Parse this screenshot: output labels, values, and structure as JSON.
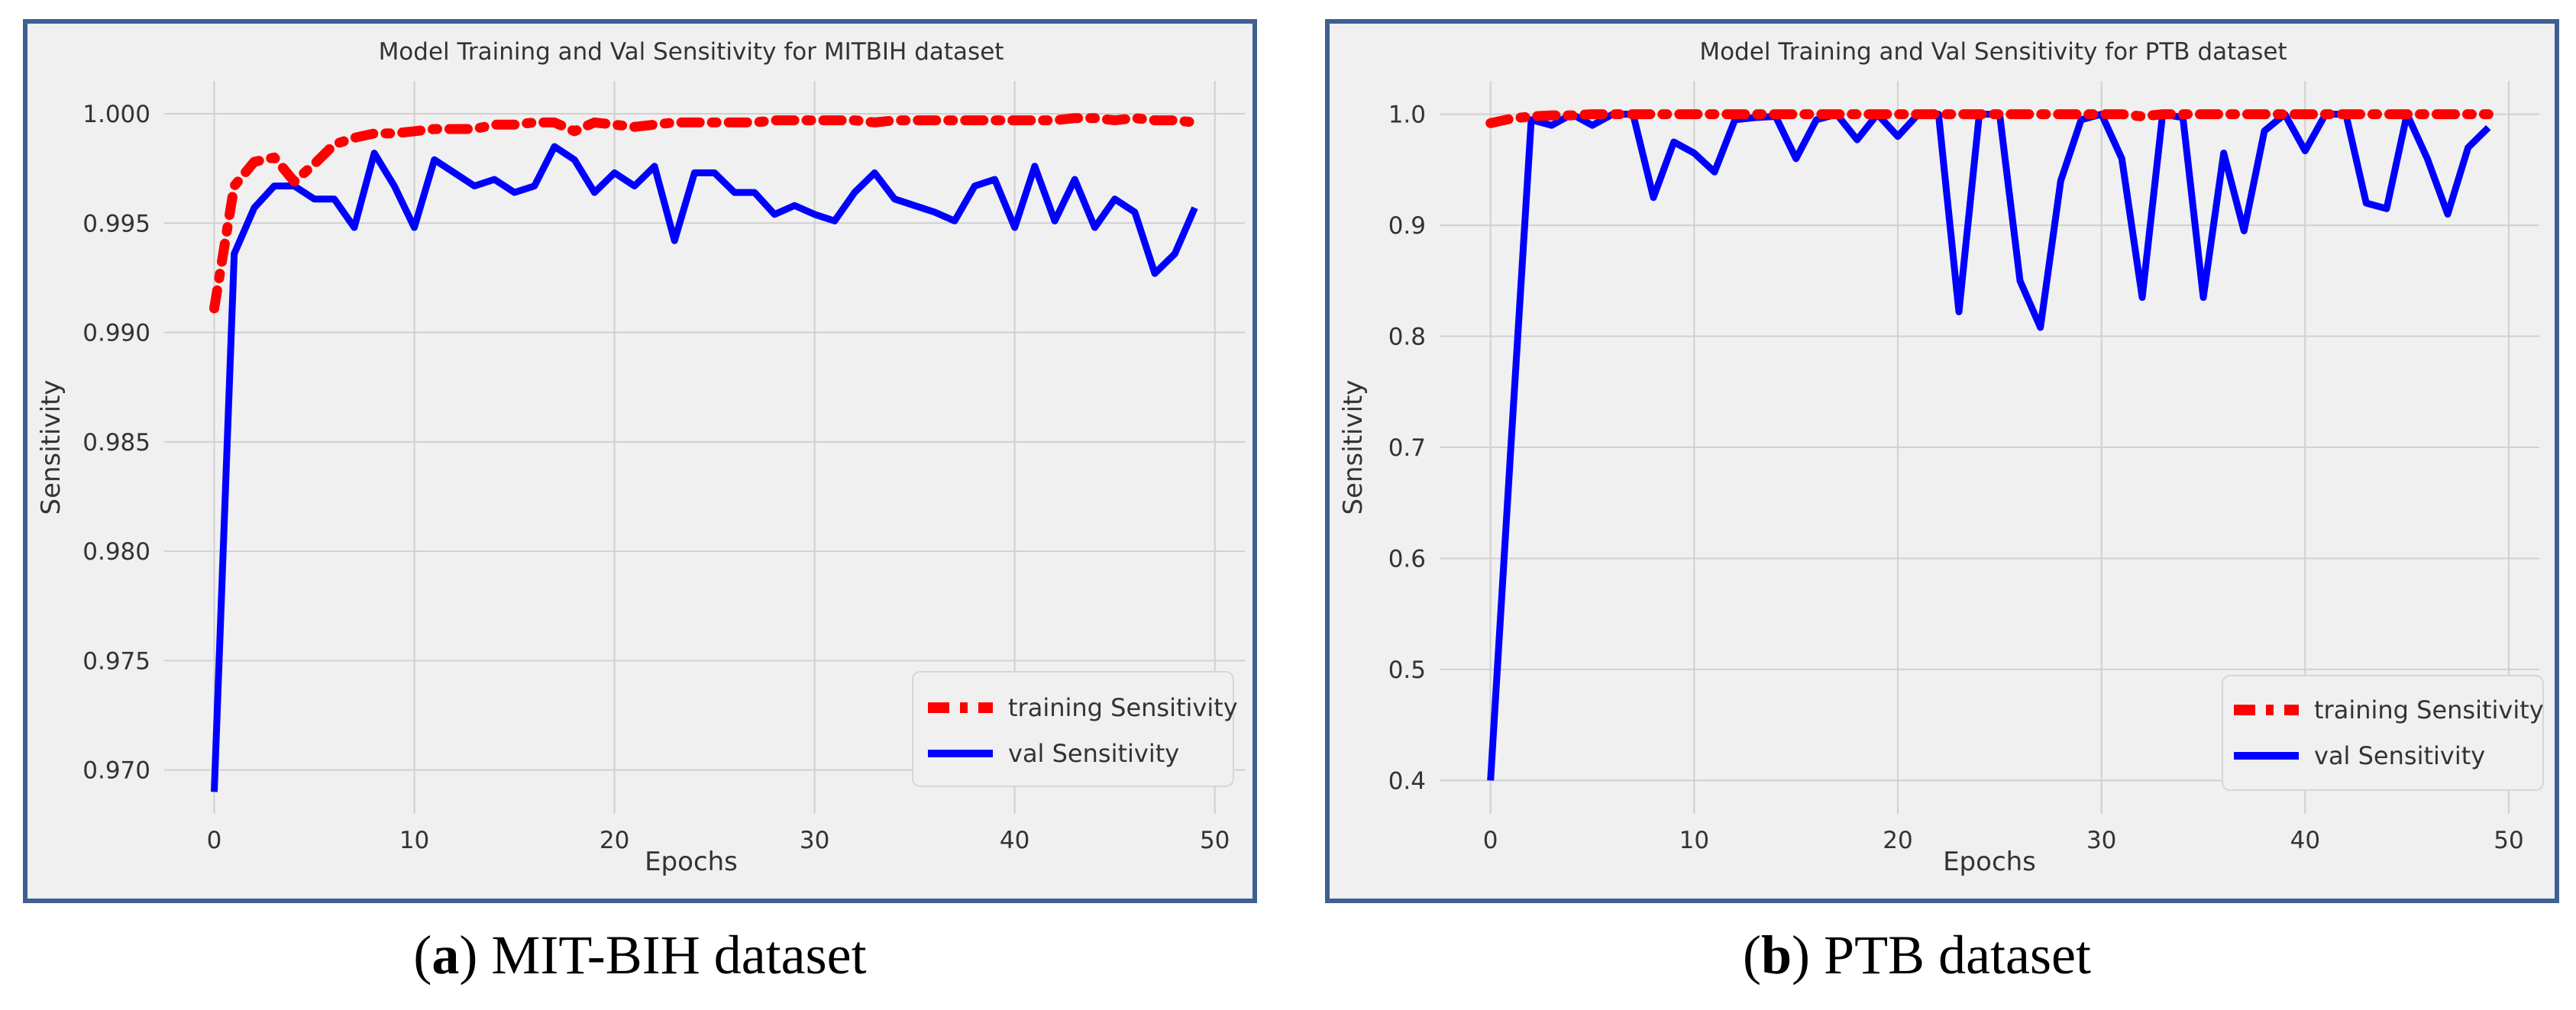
{
  "charts": [
    {
      "id": "a",
      "caption_letter": "a",
      "caption_text": "MIT-BIH dataset",
      "chart_data": {
        "type": "line",
        "title": "Model Training and Val Sensitivity for MITBIH dataset",
        "xlabel": "Epochs",
        "ylabel": "Sensitivity",
        "xlim": [
          -2.5,
          51.5
        ],
        "ylim": [
          0.968,
          1.0015
        ],
        "xticks": [
          0,
          10,
          20,
          30,
          40,
          50
        ],
        "yticks": [
          0.97,
          0.975,
          0.98,
          0.985,
          0.99,
          0.995,
          1.0
        ],
        "ytick_labels": [
          "0.970",
          "0.975",
          "0.980",
          "0.985",
          "0.990",
          "0.995",
          "1.000"
        ],
        "grid": true,
        "legend_position": "lower-right",
        "x": [
          0,
          1,
          2,
          3,
          4,
          5,
          6,
          7,
          8,
          9,
          10,
          11,
          12,
          13,
          14,
          15,
          16,
          17,
          18,
          19,
          20,
          21,
          22,
          23,
          24,
          25,
          26,
          27,
          28,
          29,
          30,
          31,
          32,
          33,
          34,
          35,
          36,
          37,
          38,
          39,
          40,
          41,
          42,
          43,
          44,
          45,
          46,
          47,
          48,
          49
        ],
        "series": [
          {
            "name": "training Sensitivity",
            "color": "#ff0000",
            "style": "dashed-dot",
            "values": [
              0.9911,
              0.9967,
              0.9978,
              0.998,
              0.9969,
              0.9977,
              0.9986,
              0.9989,
              0.9991,
              0.9991,
              0.9992,
              0.9993,
              0.9993,
              0.9993,
              0.9995,
              0.9995,
              0.9996,
              0.9996,
              0.9992,
              0.9996,
              0.9995,
              0.9994,
              0.9995,
              0.9996,
              0.9996,
              0.9996,
              0.9996,
              0.9996,
              0.9997,
              0.9997,
              0.9997,
              0.9997,
              0.9997,
              0.9996,
              0.9997,
              0.9997,
              0.9997,
              0.9997,
              0.9997,
              0.9997,
              0.9997,
              0.9997,
              0.9997,
              0.9998,
              0.9998,
              0.9997,
              0.9998,
              0.9997,
              0.9997,
              0.9996
            ]
          },
          {
            "name": "val Sensitivity",
            "color": "#0000ff",
            "style": "solid",
            "values": [
              0.969,
              0.9936,
              0.9957,
              0.9967,
              0.9967,
              0.9961,
              0.9961,
              0.9948,
              0.9982,
              0.9967,
              0.9948,
              0.9979,
              0.9973,
              0.9967,
              0.997,
              0.9964,
              0.9967,
              0.9985,
              0.9979,
              0.9964,
              0.9973,
              0.9967,
              0.9976,
              0.9942,
              0.9973,
              0.9973,
              0.9964,
              0.9964,
              0.9954,
              0.9958,
              0.9954,
              0.9951,
              0.9964,
              0.9973,
              0.9961,
              0.9958,
              0.9955,
              0.9951,
              0.9967,
              0.997,
              0.9948,
              0.9976,
              0.9951,
              0.997,
              0.9948,
              0.9961,
              0.9955,
              0.9927,
              0.9936,
              0.9957
            ]
          }
        ]
      }
    },
    {
      "id": "b",
      "caption_letter": "b",
      "caption_text": "PTB dataset",
      "chart_data": {
        "type": "line",
        "title": "Model Training and Val Sensitivity for PTB dataset",
        "xlabel": "Epochs",
        "ylabel": "Sensitivity",
        "xlim": [
          -2.5,
          51.5
        ],
        "ylim": [
          0.37,
          1.03
        ],
        "xticks": [
          0,
          10,
          20,
          30,
          40,
          50
        ],
        "yticks": [
          0.4,
          0.5,
          0.6,
          0.7,
          0.8,
          0.9,
          1.0
        ],
        "ytick_labels": [
          "0.4",
          "0.5",
          "0.6",
          "0.7",
          "0.8",
          "0.9",
          "1.0"
        ],
        "grid": true,
        "legend_position": "lower-right",
        "x": [
          0,
          1,
          2,
          3,
          4,
          5,
          6,
          7,
          8,
          9,
          10,
          11,
          12,
          13,
          14,
          15,
          16,
          17,
          18,
          19,
          20,
          21,
          22,
          23,
          24,
          25,
          26,
          27,
          28,
          29,
          30,
          31,
          32,
          33,
          34,
          35,
          36,
          37,
          38,
          39,
          40,
          41,
          42,
          43,
          44,
          45,
          46,
          47,
          48,
          49
        ],
        "series": [
          {
            "name": "training Sensitivity",
            "color": "#ff0000",
            "style": "dashed-dot",
            "values": [
              0.992,
              0.996,
              0.998,
              0.999,
              0.999,
              1.0,
              1.0,
              1.0,
              1.0,
              1.0,
              1.0,
              1.0,
              1.0,
              1.0,
              1.0,
              1.0,
              1.0,
              1.0,
              1.0,
              1.0,
              1.0,
              1.0,
              1.0,
              1.0,
              1.0,
              1.0,
              1.0,
              1.0,
              1.0,
              1.0,
              1.0,
              1.0,
              0.998,
              1.0,
              1.0,
              1.0,
              1.0,
              1.0,
              1.0,
              1.0,
              1.0,
              1.0,
              1.0,
              1.0,
              1.0,
              1.0,
              1.0,
              1.0,
              1.0,
              1.0
            ]
          },
          {
            "name": "val Sensitivity",
            "color": "#0000ff",
            "style": "solid",
            "values": [
              0.4,
              0.7,
              0.995,
              0.99,
              1.0,
              0.99,
              1.0,
              1.0,
              0.925,
              0.975,
              0.965,
              0.948,
              0.995,
              0.997,
              0.998,
              0.96,
              0.995,
              1.0,
              0.977,
              1.0,
              0.98,
              1.0,
              1.0,
              0.822,
              1.0,
              1.0,
              0.85,
              0.808,
              0.94,
              0.995,
              1.0,
              0.96,
              0.835,
              1.0,
              0.997,
              0.835,
              0.965,
              0.895,
              0.985,
              1.0,
              0.967,
              1.0,
              1.0,
              0.92,
              0.915,
              1.0,
              0.96,
              0.91,
              0.97,
              0.988
            ]
          }
        ]
      }
    }
  ]
}
